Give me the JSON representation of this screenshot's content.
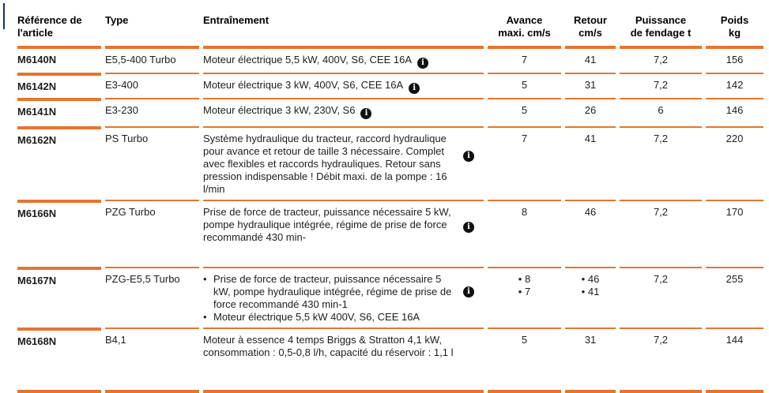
{
  "colors": {
    "accent_orange": "#e6752f",
    "text": "#1d1d1b",
    "info_icon_bg": "#111111",
    "edge_mark_blue": "#16324f"
  },
  "icons": {
    "info_glyph": "i",
    "bullet": "•"
  },
  "header": {
    "cols": [
      {
        "lines": [
          "Référence de",
          "l'article"
        ]
      },
      {
        "lines": [
          "Type",
          ""
        ]
      },
      {
        "lines": [
          "Entraînement",
          ""
        ]
      },
      {
        "lines": [
          "Avance",
          "maxi. cm/s"
        ]
      },
      {
        "lines": [
          "Retour",
          "cm/s"
        ]
      },
      {
        "lines": [
          "Puissance",
          "de fendage t"
        ]
      },
      {
        "lines": [
          "Poids",
          "kg"
        ]
      }
    ]
  },
  "rows": [
    {
      "ref": "M6140N",
      "type": "E5,5-400 Turbo",
      "drive": [
        "Moteur électrique 5,5 kW, 400V, S6, CEE 16A"
      ],
      "drive_bullets": false,
      "info": "inline",
      "value_bullets": false,
      "avance": [
        "7"
      ],
      "retour": [
        "41"
      ],
      "puissance": "7,2",
      "poids": "156"
    },
    {
      "ref": "M6142N",
      "type": "E3-400",
      "drive": [
        "Moteur électrique 3 kW, 400V, S6, CEE 16A"
      ],
      "drive_bullets": false,
      "info": "inline",
      "value_bullets": false,
      "avance": [
        "5"
      ],
      "retour": [
        "31"
      ],
      "puissance": "7,2",
      "poids": "142"
    },
    {
      "ref": "M6141N",
      "type": "E3-230",
      "drive": [
        "Moteur électrique 3 kW, 230V, S6"
      ],
      "drive_bullets": false,
      "info": "inline",
      "value_bullets": false,
      "avance": [
        "5"
      ],
      "retour": [
        "26"
      ],
      "puissance": "6",
      "poids": "146"
    },
    {
      "ref": "M6162N",
      "type": "PS Turbo",
      "drive": [
        "Système hydraulique du tracteur, raccord hydraulique pour avance et retour de taille 3 nécessaire. Complet avec flexibles et raccords hydrauliques. Retour sans pression indispensable ! Débit maxi. de la pompe : 16 l/min"
      ],
      "drive_bullets": false,
      "info": "side",
      "value_bullets": false,
      "avance": [
        "7"
      ],
      "retour": [
        "41"
      ],
      "puissance": "7,2",
      "poids": "220"
    },
    {
      "ref": "M6166N",
      "type": "PZG Turbo",
      "drive": [
        "Prise de force de tracteur, puissance nécessaire 5 kW, pompe hydraulique intégrée, régime de prise de force recommandé 430 min-"
      ],
      "drive_bullets": false,
      "info": "side",
      "value_bullets": false,
      "avance": [
        "8"
      ],
      "retour": [
        "46"
      ],
      "puissance": "7,2",
      "poids": "170"
    },
    {
      "ref": "M6167N",
      "type": "PZG-E5,5 Turbo",
      "drive": [
        "Prise de force de tracteur, puissance nécessaire 5 kW, pompe hydraulique intégrée, régime de prise de force recommandé 430 min-1",
        "Moteur électrique 5,5 kW 400V, S6, CEE 16A"
      ],
      "drive_bullets": true,
      "info": "side",
      "value_bullets": true,
      "avance": [
        "8",
        "7"
      ],
      "retour": [
        "46",
        "41"
      ],
      "puissance": "7,2",
      "poids": "255"
    },
    {
      "ref": "M6168N",
      "type": "B4,1",
      "drive": [
        "Moteur à essence 4 temps Briggs & Stratton 4,1 kW, consommation : 0,5-0,8 l/h, capacité du réservoir : 1,1 l"
      ],
      "drive_bullets": false,
      "info": "none",
      "value_bullets": false,
      "avance": [
        "5"
      ],
      "retour": [
        "31"
      ],
      "puissance": "7,2",
      "poids": "144"
    }
  ]
}
